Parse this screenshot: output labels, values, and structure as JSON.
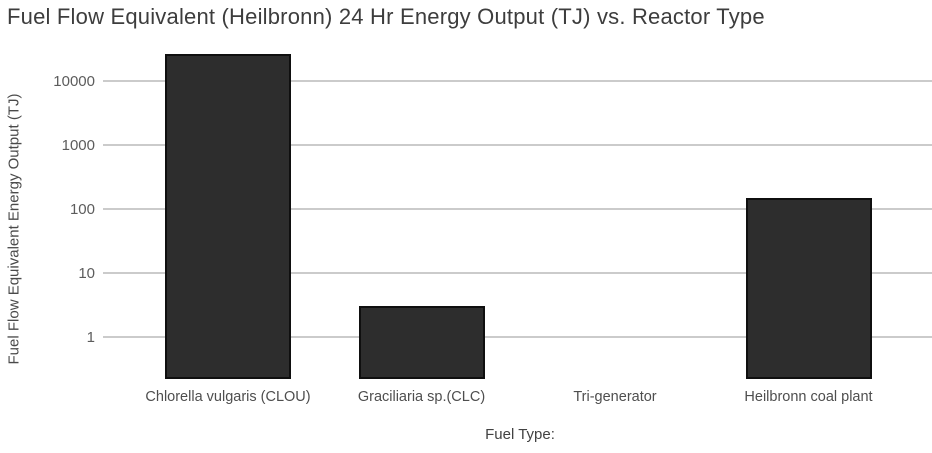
{
  "chart_data": {
    "type": "bar",
    "title": "Fuel Flow Equivalent (Heilbronn) 24 Hr Energy Output (TJ) vs. Reactor Type",
    "xlabel": "Fuel Type:",
    "ylabel": "Fuel Flow Equivalent Energy Output (TJ)",
    "categories": [
      "Chlorella vulgaris (CLOU)",
      "Graciliaria sp.(CLC)",
      "Tri-generator",
      "Heilbronn coal plant"
    ],
    "values": [
      26000,
      3,
      0,
      150
    ],
    "yscale": "log",
    "yticks": [
      1,
      10,
      100,
      1000,
      10000
    ],
    "ylim": [
      0.22,
      35000
    ],
    "grid": true,
    "legend": "none",
    "colors": {
      "bar_fill": "#2d2d2d",
      "bar_border": "#0f0f0f",
      "gridline": "#cbcbcb",
      "title_text": "#3d3d3d",
      "axis_text": "#5c5c5c",
      "background": "#ffffff"
    }
  }
}
